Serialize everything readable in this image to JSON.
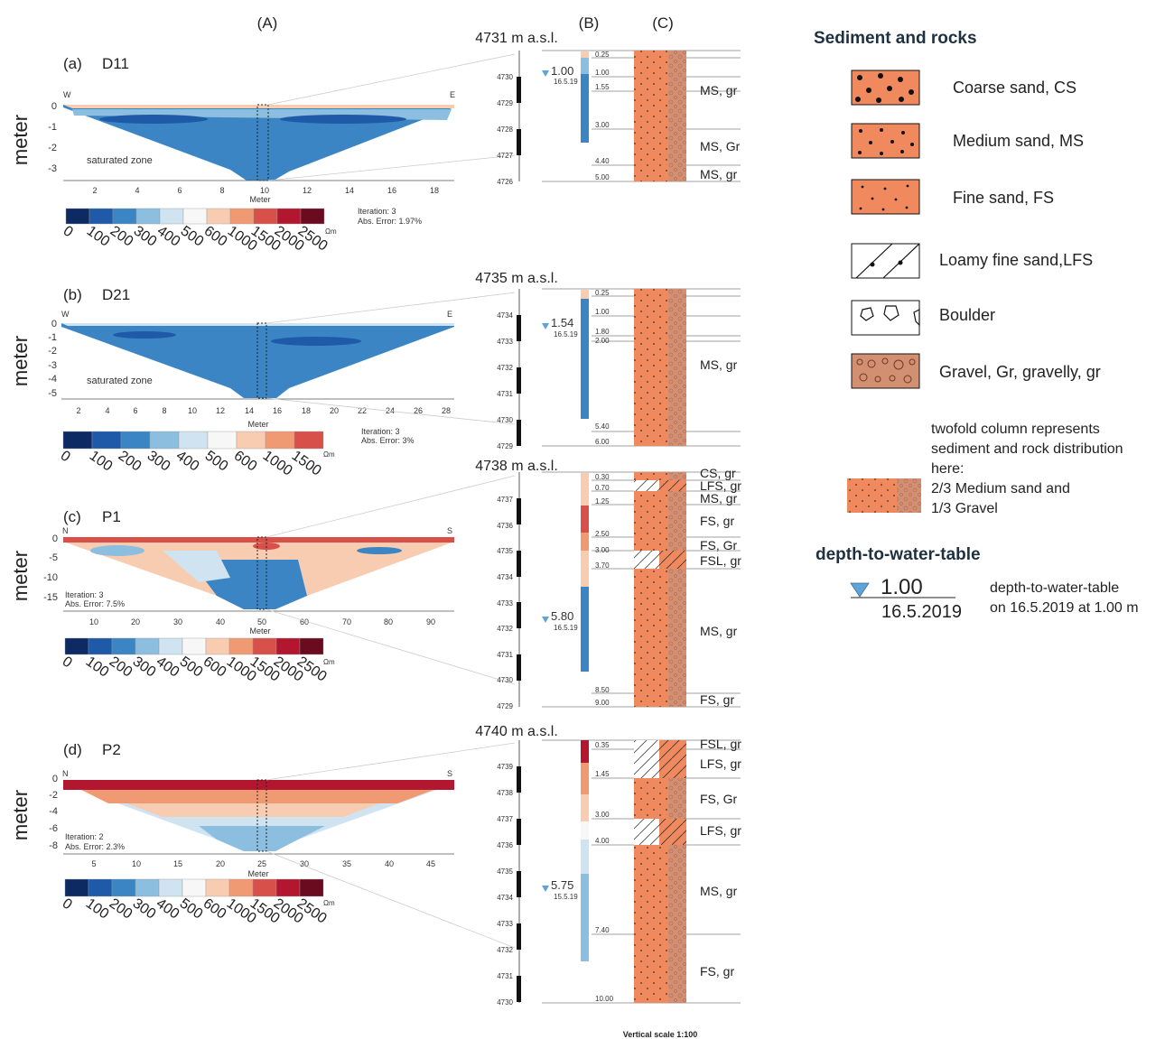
{
  "colors": {
    "scale": [
      "#0d2a63",
      "#1f5aa8",
      "#3b85c4",
      "#8bbedf",
      "#cfe3f1",
      "#f7f7f7",
      "#f8ccb1",
      "#f09a74",
      "#d8504a",
      "#b3162f",
      "#6b0b1f"
    ],
    "sand": "#f0895e",
    "gravel": "#d38f72"
  },
  "column_headers": {
    "a": "(A)",
    "b": "(B)",
    "c": "(C)"
  },
  "panels": [
    {
      "id": "a",
      "tag": "(a)",
      "name": "D11",
      "left": "W",
      "right": "E",
      "y_ticks": [
        "0",
        "-1",
        "-2",
        "-3"
      ],
      "x_ticks": [
        "2",
        "4",
        "6",
        "8",
        "10",
        "12",
        "14",
        "16",
        "18"
      ],
      "xlabel": "Meter",
      "ylabel": "meter",
      "zone": "saturated zone",
      "iteration": "Iteration: 3",
      "error": "Abs. Error: 1.97%",
      "scale": [
        "0",
        "100",
        "200",
        "300",
        "400",
        "500",
        "600",
        "1000",
        "1500",
        "2000",
        "2500"
      ],
      "unit": "Ωm",
      "elevation": "4731 m a.s.l.",
      "elev_ticks": [
        "4730",
        "4729",
        "4728",
        "4727",
        "4726"
      ],
      "depths": [
        "0.25",
        "1.00",
        "1.55",
        "3.00",
        "4.40",
        "5.00"
      ],
      "water_level": "1.00",
      "water_date": "16.5.19",
      "units": [
        "MS, gr",
        "MS, Gr",
        "MS, gr"
      ]
    },
    {
      "id": "b",
      "tag": "(b)",
      "name": "D21",
      "left": "W",
      "right": "E",
      "y_ticks": [
        "0",
        "-1",
        "-2",
        "-3",
        "-4",
        "-5"
      ],
      "x_ticks": [
        "2",
        "4",
        "6",
        "8",
        "10",
        "12",
        "14",
        "16",
        "18",
        "20",
        "22",
        "24",
        "26",
        "28"
      ],
      "xlabel": "Meter",
      "ylabel": "meter",
      "zone": "saturated zone",
      "iteration": "Iteration: 3",
      "error": "Abs. Error: 3%",
      "scale": [
        "0",
        "100",
        "200",
        "300",
        "400",
        "500",
        "600",
        "1000",
        "1500"
      ],
      "unit": "Ωm",
      "elevation": "4735 m a.s.l.",
      "elev_ticks": [
        "4734",
        "4733",
        "4732",
        "4731",
        "4730",
        "4729"
      ],
      "depths": [
        "0.25",
        "1.00",
        "1.80",
        "2.00",
        "5.40",
        "6.00"
      ],
      "water_level": "1.54",
      "water_date": "16.5.19",
      "units": [
        "MS, gr"
      ]
    },
    {
      "id": "c",
      "tag": "(c)",
      "name": "P1",
      "left": "N",
      "right": "S",
      "y_ticks": [
        "0",
        "-5",
        "-10",
        "-15"
      ],
      "x_ticks": [
        "10",
        "20",
        "30",
        "40",
        "50",
        "60",
        "70",
        "80",
        "90"
      ],
      "xlabel": "Meter",
      "ylabel": "meter",
      "iteration": "Iteration: 3",
      "error": "Abs. Error: 7.5%",
      "scale": [
        "0",
        "100",
        "200",
        "300",
        "400",
        "500",
        "600",
        "1000",
        "1500",
        "2000",
        "2500"
      ],
      "unit": "Ωm",
      "elevation": "4738 m a.s.l.",
      "elev_ticks": [
        "4737",
        "4736",
        "4735",
        "4734",
        "4733",
        "4732",
        "4731",
        "4730",
        "4729"
      ],
      "depths": [
        "0.30",
        "0.70",
        "1.25",
        "2.50",
        "3.00",
        "3.70",
        "8.50",
        "9.00"
      ],
      "water_level": "5.80",
      "water_date": "16.5.19",
      "units": [
        "CS, gr",
        "LFS, gr",
        "MS, gr",
        "FS, gr",
        "FS, Gr",
        "FSL, gr",
        "MS, gr",
        "FS, gr"
      ]
    },
    {
      "id": "d",
      "tag": "(d)",
      "name": "P2",
      "left": "N",
      "right": "S",
      "y_ticks": [
        "0",
        "-2",
        "-4",
        "-6",
        "-8"
      ],
      "x_ticks": [
        "5",
        "10",
        "15",
        "20",
        "25",
        "30",
        "35",
        "40",
        "45"
      ],
      "xlabel": "Meter",
      "ylabel": "meter",
      "iteration": "Iteration: 2",
      "error": "Abs. Error: 2.3%",
      "scale": [
        "0",
        "100",
        "200",
        "300",
        "400",
        "500",
        "600",
        "1000",
        "1500",
        "2000",
        "2500"
      ],
      "unit": "Ωm",
      "elevation": "4740 m a.s.l.",
      "elev_ticks": [
        "4739",
        "4738",
        "4737",
        "4736",
        "4735",
        "4734",
        "4733",
        "4732",
        "4731",
        "4730"
      ],
      "depths": [
        "0.35",
        "1.45",
        "3.00",
        "4.00",
        "7.40",
        "10.00"
      ],
      "water_level": "5.75",
      "water_date": "15.5.19",
      "units": [
        "FSL, gr",
        "LFS, gr",
        "FS, Gr",
        "LFS, gr",
        "MS, gr",
        "FS, gr"
      ]
    }
  ],
  "legend": {
    "title": "Sediment and rocks",
    "items": [
      "Coarse sand, CS",
      "Medium sand, MS",
      "Fine sand, FS",
      "Loamy fine sand,LFS",
      "Boulder",
      "Gravel, Gr, gravelly, gr"
    ],
    "twofold": [
      "twofold column represents",
      "sediment and rock distribution",
      "here:",
      "2/3 Medium sand and",
      "1/3 Gravel"
    ],
    "wt_title": "depth-to-water-table",
    "wt_value": "1.00",
    "wt_date": "16.5.2019",
    "wt_desc": [
      "depth-to-water-table",
      "on 16.5.2019 at 1.00 m"
    ]
  },
  "footer": "Vertical scale 1:100"
}
